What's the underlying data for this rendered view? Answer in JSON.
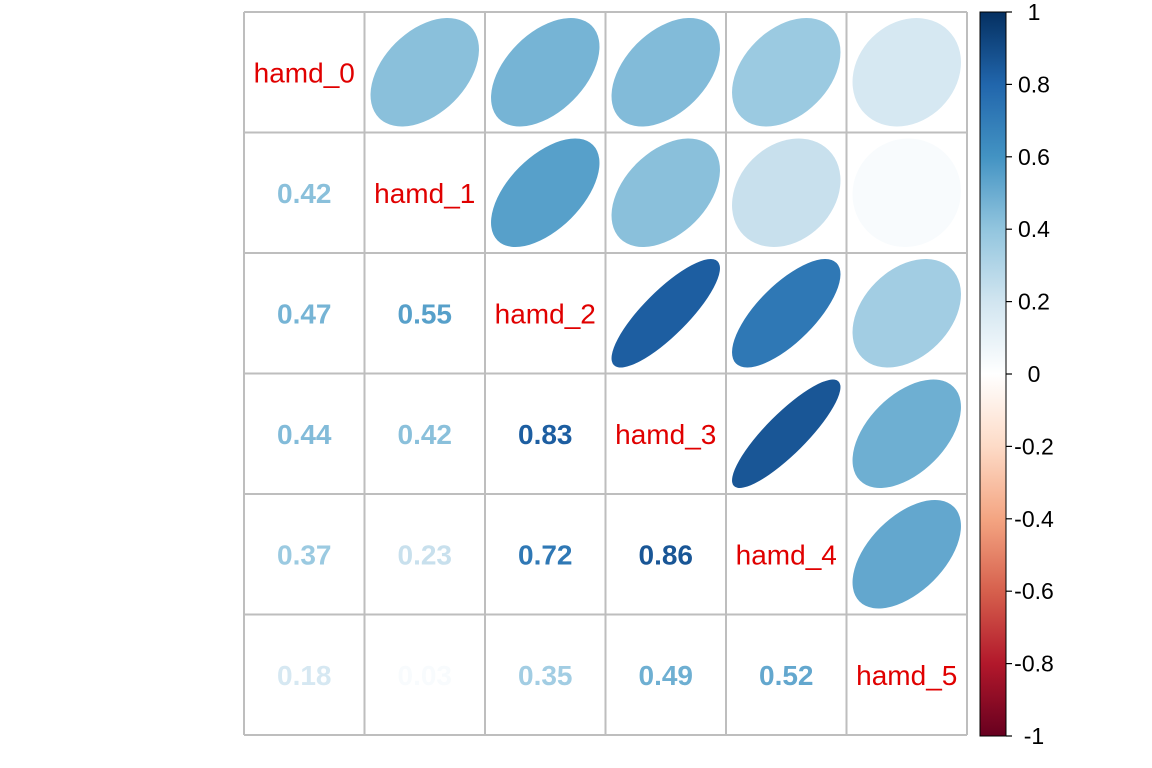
{
  "chart_data": {
    "type": "heatmap",
    "variables": [
      "hamd_0",
      "hamd_1",
      "hamd_2",
      "hamd_3",
      "hamd_4",
      "hamd_5"
    ],
    "matrix": [
      [
        1.0,
        0.42,
        0.47,
        0.44,
        0.37,
        0.18
      ],
      [
        0.42,
        1.0,
        0.55,
        0.42,
        0.23,
        0.03
      ],
      [
        0.47,
        0.55,
        1.0,
        0.83,
        0.72,
        0.35
      ],
      [
        0.44,
        0.42,
        0.83,
        1.0,
        0.86,
        0.49
      ],
      [
        0.37,
        0.23,
        0.72,
        0.86,
        1.0,
        0.52
      ],
      [
        0.18,
        0.03,
        0.35,
        0.49,
        0.52,
        1.0
      ]
    ],
    "lower_method": "number",
    "upper_method": "ellipse",
    "diagonal_label_color": "#e00000",
    "colorbar": {
      "range": [
        -1,
        1
      ],
      "tick_labels": [
        "1",
        "0.8",
        "0.6",
        "0.4",
        "0.2",
        "0",
        "-0.2",
        "-0.4",
        "-0.6",
        "-0.8",
        "-1"
      ],
      "stops": [
        "#67001f",
        "#b2182b",
        "#d6604d",
        "#f4a582",
        "#fddbc7",
        "#ffffff",
        "#d1e5f0",
        "#92c5de",
        "#4393c3",
        "#2166ac",
        "#053061"
      ]
    },
    "grid_color": "#bebebe"
  }
}
